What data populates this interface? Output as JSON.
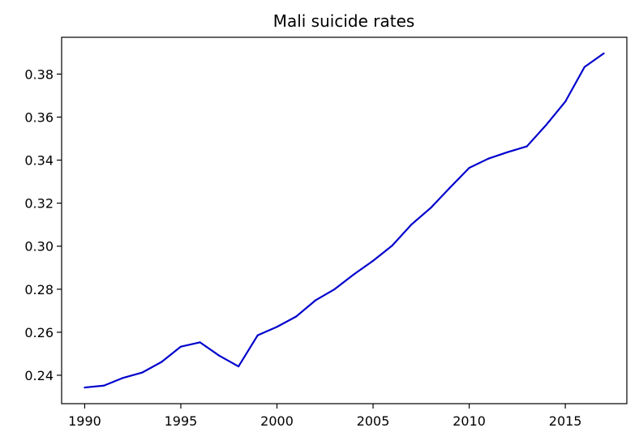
{
  "chart_data": {
    "type": "line",
    "title": "Mali suicide rates",
    "xlabel": "",
    "ylabel": "",
    "xlim": [
      1988.8,
      2018.2
    ],
    "ylim": [
      0.2268,
      0.3971
    ],
    "xticks": [
      1990,
      1995,
      2000,
      2005,
      2010,
      2015
    ],
    "xtick_labels": [
      "1990",
      "1995",
      "2000",
      "2005",
      "2010",
      "2015"
    ],
    "yticks": [
      0.24,
      0.26,
      0.28,
      0.3,
      0.32,
      0.34,
      0.36,
      0.38
    ],
    "ytick_labels": [
      "0.24",
      "0.26",
      "0.28",
      "0.30",
      "0.32",
      "0.34",
      "0.36",
      "0.38"
    ],
    "grid": false,
    "line_color": "#0000cc",
    "series": [
      {
        "x": [
          1990,
          1991,
          1992,
          1993,
          1994,
          1995,
          1996,
          1997,
          1998,
          1999,
          2000,
          2001,
          2002,
          2003,
          2004,
          2005,
          2006,
          2007,
          2008,
          2009,
          2010,
          2011,
          2012,
          2013,
          2014,
          2015,
          2016,
          2017
        ],
        "values": [
          0.2343,
          0.2352,
          0.2388,
          0.2413,
          0.2462,
          0.2533,
          0.2553,
          0.2491,
          0.2441,
          0.2586,
          0.2625,
          0.2673,
          0.2748,
          0.28,
          0.2869,
          0.2932,
          0.3003,
          0.3101,
          0.3178,
          0.3272,
          0.3364,
          0.3407,
          0.3437,
          0.3464,
          0.3563,
          0.3672,
          0.3833,
          0.3896
        ]
      }
    ]
  }
}
